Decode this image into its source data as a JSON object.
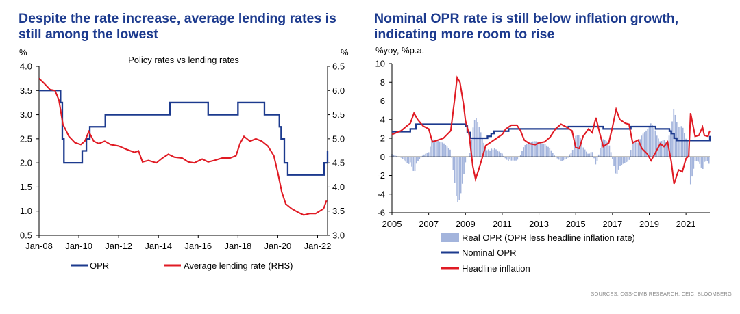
{
  "left_title": "Despite the rate increase, average lending rates is still among the lowest",
  "right_title": "Nominal OPR rate is still below inflation growth, indicating more room to rise",
  "source": "SOURCES: CGS-CIMB RESEARCH, CEIC, BLOOMBERG",
  "colors": {
    "opr": "#1c3a8e",
    "lending": "#e01b24",
    "real": "#a3b4dc",
    "title": "#1c3a8e"
  },
  "chart_data": [
    {
      "type": "line",
      "title": "Policy rates vs lending rates",
      "y_unit_left": "%",
      "y_unit_right": "%",
      "x_ticks": [
        "Jan-08",
        "Jan-10",
        "Jan-12",
        "Jan-14",
        "Jan-16",
        "Jan-18",
        "Jan-20",
        "Jan-22"
      ],
      "x_tick_years": [
        2008,
        2010,
        2012,
        2014,
        2016,
        2018,
        2020,
        2022
      ],
      "xlim": [
        2008.0,
        2022.5
      ],
      "y_left_ticks": [
        "4.0",
        "3.5",
        "3.0",
        "2.5",
        "2.0",
        "1.5",
        "1.0",
        "0.5"
      ],
      "y_right_ticks": [
        "6.5",
        "6.0",
        "5.5",
        "5.0",
        "4.5",
        "4.0",
        "3.5",
        "3.0"
      ],
      "ylim_left": [
        0.5,
        4.0
      ],
      "ylim_right": [
        3.0,
        6.5
      ],
      "legend": [
        "OPR",
        "Average lending rate (RHS)"
      ],
      "series": [
        {
          "name": "OPR",
          "axis": "left",
          "step": true,
          "points": [
            [
              2008.0,
              3.5
            ],
            [
              2009.08,
              3.25
            ],
            [
              2009.17,
              2.5
            ],
            [
              2009.25,
              2.0
            ],
            [
              2010.17,
              2.25
            ],
            [
              2010.38,
              2.5
            ],
            [
              2010.55,
              2.75
            ],
            [
              2011.33,
              3.0
            ],
            [
              2014.58,
              3.25
            ],
            [
              2016.5,
              3.0
            ],
            [
              2018.0,
              3.25
            ],
            [
              2019.33,
              3.0
            ],
            [
              2020.08,
              2.75
            ],
            [
              2020.17,
              2.5
            ],
            [
              2020.33,
              2.0
            ],
            [
              2020.5,
              1.75
            ],
            [
              2022.33,
              2.0
            ],
            [
              2022.5,
              2.25
            ]
          ]
        },
        {
          "name": "Average lending rate (RHS)",
          "axis": "right",
          "step": false,
          "points": [
            [
              2008.0,
              6.25
            ],
            [
              2008.25,
              6.15
            ],
            [
              2008.55,
              6.02
            ],
            [
              2008.8,
              6.0
            ],
            [
              2009.0,
              5.8
            ],
            [
              2009.2,
              5.3
            ],
            [
              2009.5,
              5.05
            ],
            [
              2009.8,
              4.92
            ],
            [
              2010.1,
              4.88
            ],
            [
              2010.3,
              4.95
            ],
            [
              2010.5,
              5.15
            ],
            [
              2010.75,
              4.95
            ],
            [
              2011.0,
              4.9
            ],
            [
              2011.3,
              4.95
            ],
            [
              2011.6,
              4.88
            ],
            [
              2012.0,
              4.85
            ],
            [
              2012.4,
              4.78
            ],
            [
              2012.8,
              4.72
            ],
            [
              2013.0,
              4.75
            ],
            [
              2013.2,
              4.52
            ],
            [
              2013.5,
              4.55
            ],
            [
              2013.9,
              4.5
            ],
            [
              2014.2,
              4.6
            ],
            [
              2014.5,
              4.68
            ],
            [
              2014.8,
              4.62
            ],
            [
              2015.2,
              4.6
            ],
            [
              2015.5,
              4.52
            ],
            [
              2015.8,
              4.5
            ],
            [
              2016.2,
              4.58
            ],
            [
              2016.5,
              4.52
            ],
            [
              2016.8,
              4.55
            ],
            [
              2017.2,
              4.6
            ],
            [
              2017.6,
              4.6
            ],
            [
              2017.9,
              4.65
            ],
            [
              2018.1,
              4.9
            ],
            [
              2018.3,
              5.05
            ],
            [
              2018.6,
              4.95
            ],
            [
              2018.9,
              5.0
            ],
            [
              2019.2,
              4.95
            ],
            [
              2019.5,
              4.85
            ],
            [
              2019.8,
              4.65
            ],
            [
              2020.0,
              4.3
            ],
            [
              2020.2,
              3.9
            ],
            [
              2020.4,
              3.65
            ],
            [
              2020.7,
              3.55
            ],
            [
              2021.0,
              3.48
            ],
            [
              2021.3,
              3.42
            ],
            [
              2021.6,
              3.45
            ],
            [
              2021.9,
              3.45
            ],
            [
              2022.1,
              3.5
            ],
            [
              2022.3,
              3.55
            ],
            [
              2022.45,
              3.72
            ]
          ]
        }
      ]
    },
    {
      "type": "line",
      "y_unit": "%yoy, %p.a.",
      "x_ticks": [
        "2005",
        "2007",
        "2009",
        "2011",
        "2013",
        "2015",
        "2017",
        "2019",
        "2021"
      ],
      "x_tick_years": [
        2005,
        2007,
        2009,
        2011,
        2013,
        2015,
        2017,
        2019,
        2021
      ],
      "xlim": [
        2005.0,
        2022.3
      ],
      "y_ticks": [
        "10",
        "8",
        "6",
        "4",
        "2",
        "0",
        "-2",
        "-4",
        "-6"
      ],
      "ylim": [
        -6,
        10
      ],
      "legend": [
        "Real OPR (OPR less headline inflation rate)",
        "Nominal OPR",
        "Headline inflation"
      ],
      "series": [
        {
          "name": "Headline inflation",
          "points": [
            [
              2005.0,
              2.4
            ],
            [
              2005.5,
              2.8
            ],
            [
              2005.8,
              3.3
            ],
            [
              2006.0,
              3.6
            ],
            [
              2006.2,
              4.7
            ],
            [
              2006.4,
              4.0
            ],
            [
              2006.7,
              3.3
            ],
            [
              2007.0,
              3.0
            ],
            [
              2007.2,
              1.6
            ],
            [
              2007.5,
              1.8
            ],
            [
              2007.8,
              2.0
            ],
            [
              2008.0,
              2.4
            ],
            [
              2008.2,
              2.8
            ],
            [
              2008.4,
              6.0
            ],
            [
              2008.55,
              8.5
            ],
            [
              2008.7,
              8.0
            ],
            [
              2008.9,
              5.6
            ],
            [
              2009.0,
              3.9
            ],
            [
              2009.2,
              2.4
            ],
            [
              2009.4,
              -1.0
            ],
            [
              2009.55,
              -2.4
            ],
            [
              2009.7,
              -1.5
            ],
            [
              2009.9,
              -0.2
            ],
            [
              2010.1,
              1.2
            ],
            [
              2010.4,
              1.6
            ],
            [
              2010.7,
              2.0
            ],
            [
              2011.0,
              2.4
            ],
            [
              2011.2,
              3.0
            ],
            [
              2011.5,
              3.4
            ],
            [
              2011.8,
              3.4
            ],
            [
              2012.0,
              2.8
            ],
            [
              2012.2,
              1.8
            ],
            [
              2012.5,
              1.4
            ],
            [
              2012.8,
              1.3
            ],
            [
              2013.0,
              1.5
            ],
            [
              2013.3,
              1.6
            ],
            [
              2013.6,
              2.1
            ],
            [
              2013.9,
              3.0
            ],
            [
              2014.2,
              3.5
            ],
            [
              2014.5,
              3.2
            ],
            [
              2014.8,
              2.8
            ],
            [
              2015.0,
              1.0
            ],
            [
              2015.2,
              0.9
            ],
            [
              2015.4,
              2.2
            ],
            [
              2015.7,
              3.0
            ],
            [
              2015.9,
              2.6
            ],
            [
              2016.1,
              4.2
            ],
            [
              2016.3,
              2.6
            ],
            [
              2016.5,
              1.1
            ],
            [
              2016.8,
              1.5
            ],
            [
              2017.0,
              3.2
            ],
            [
              2017.2,
              5.1
            ],
            [
              2017.4,
              4.0
            ],
            [
              2017.7,
              3.6
            ],
            [
              2017.9,
              3.5
            ],
            [
              2018.1,
              1.5
            ],
            [
              2018.4,
              1.8
            ],
            [
              2018.6,
              0.9
            ],
            [
              2018.9,
              0.3
            ],
            [
              2019.1,
              -0.4
            ],
            [
              2019.3,
              0.3
            ],
            [
              2019.6,
              1.4
            ],
            [
              2019.8,
              1.1
            ],
            [
              2020.0,
              1.6
            ],
            [
              2020.2,
              -0.5
            ],
            [
              2020.35,
              -2.9
            ],
            [
              2020.6,
              -1.4
            ],
            [
              2020.8,
              -1.6
            ],
            [
              2021.0,
              -0.2
            ],
            [
              2021.15,
              0.1
            ],
            [
              2021.25,
              4.7
            ],
            [
              2021.5,
              2.2
            ],
            [
              2021.7,
              2.3
            ],
            [
              2021.9,
              3.2
            ],
            [
              2022.0,
              2.3
            ],
            [
              2022.2,
              2.2
            ],
            [
              2022.3,
              2.8
            ]
          ]
        },
        {
          "name": "Nominal OPR",
          "points": [
            [
              2005.0,
              2.7
            ],
            [
              2006.0,
              3.0
            ],
            [
              2006.3,
              3.5
            ],
            [
              2009.0,
              3.3
            ],
            [
              2009.1,
              2.6
            ],
            [
              2009.25,
              2.0
            ],
            [
              2010.2,
              2.2
            ],
            [
              2010.4,
              2.5
            ],
            [
              2010.55,
              2.75
            ],
            [
              2011.35,
              3.0
            ],
            [
              2014.6,
              3.25
            ],
            [
              2016.5,
              3.0
            ],
            [
              2018.0,
              3.25
            ],
            [
              2019.35,
              3.0
            ],
            [
              2020.1,
              2.75
            ],
            [
              2020.2,
              2.5
            ],
            [
              2020.35,
              2.0
            ],
            [
              2020.5,
              1.75
            ],
            [
              2022.2,
              1.75
            ],
            [
              2022.3,
              2.25
            ]
          ]
        },
        {
          "name": "Real OPR (OPR less headline inflation rate)",
          "type": "bar",
          "derived_from": "Nominal OPR - Headline inflation"
        }
      ]
    }
  ]
}
